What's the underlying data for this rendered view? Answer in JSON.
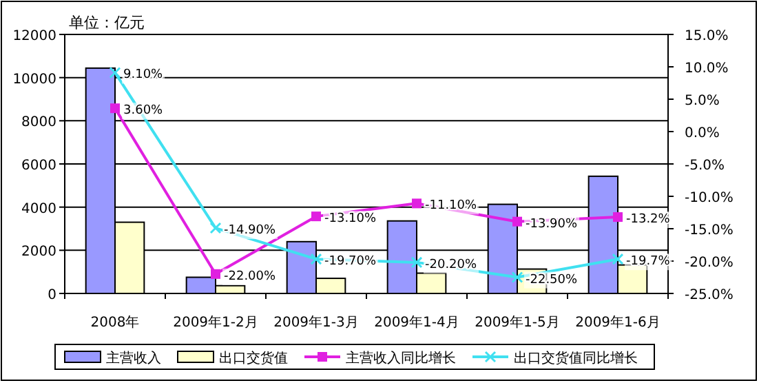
{
  "chart_data": {
    "type": "bar",
    "annotations": [
      "单位：亿元"
    ],
    "categories": [
      "2008年",
      "2009年1-2月",
      "2009年1-3月",
      "2009年1-4月",
      "2009年1-5月",
      "2009年1-6月"
    ],
    "series": [
      {
        "name": "主营收入",
        "color": "#9999ff",
        "values": [
          10440,
          750,
          2400,
          3360,
          4130,
          5430
        ]
      },
      {
        "name": "出口交货值",
        "color": "#ffffcc",
        "values": [
          3300,
          360,
          700,
          940,
          1130,
          1320
        ]
      },
      {
        "name": "主营收入同比增长",
        "type": "line",
        "axis": "y2",
        "color": "#e020e0",
        "marker": "square",
        "values": [
          3.6,
          -22.0,
          -13.1,
          -11.1,
          -13.9,
          -13.2
        ],
        "value_labels": [
          "3.60%",
          "-22.00%",
          "-13.10%",
          "-11.10%",
          "-13.90%",
          "-13.2%"
        ]
      },
      {
        "name": "出口交货值同比增长",
        "type": "line",
        "axis": "y2",
        "color": "#40e0f0",
        "marker": "cross",
        "values": [
          9.1,
          -14.9,
          -19.7,
          -20.2,
          -22.5,
          -19.7
        ],
        "value_labels": [
          "9.10%",
          "-14.90%",
          "-19.70%",
          "-20.20%",
          "-22.50%",
          "-19.7%"
        ]
      }
    ],
    "ylim": [
      0,
      12000
    ],
    "yticks": [
      0,
      2000,
      4000,
      6000,
      8000,
      10000,
      12000
    ],
    "y2lim": [
      -25,
      15
    ],
    "y2ticks": [
      {
        "value": -25,
        "label": "-25.0%"
      },
      {
        "value": -20,
        "label": "-20.0%"
      },
      {
        "value": -15,
        "label": "-15.0%"
      },
      {
        "value": -10,
        "label": "-10.0%"
      },
      {
        "value": -5,
        "label": "-5.0%"
      },
      {
        "value": 0,
        "label": "0.0%"
      },
      {
        "value": 5,
        "label": "5.0%"
      },
      {
        "value": 10,
        "label": "10.0%"
      },
      {
        "value": 15,
        "label": "15.0%"
      }
    ],
    "grid": "y",
    "legend": "bottom"
  }
}
